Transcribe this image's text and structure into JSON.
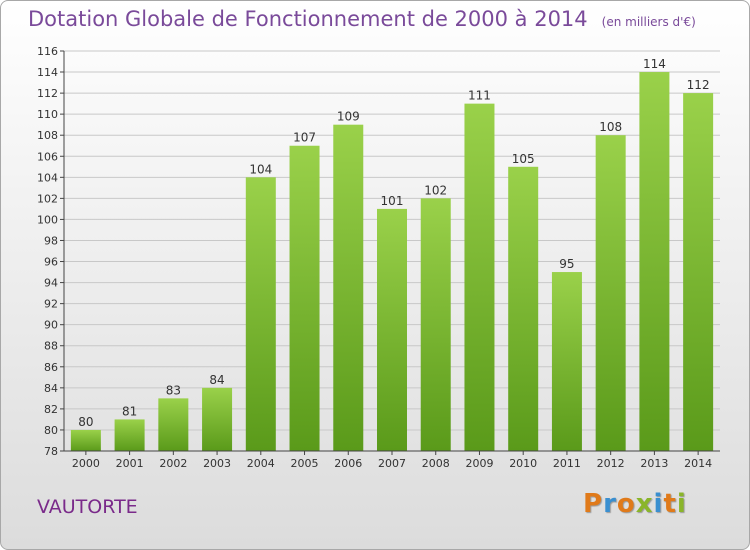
{
  "title": "Dotation Globale de Fonctionnement de 2000 à 2014",
  "subtitle": "(en milliers d'€)",
  "commune": "VAUTORTE",
  "logo": {
    "letters": [
      "P",
      "r",
      "o",
      "x",
      "i",
      "t",
      "i"
    ],
    "colors": [
      "#e07a1a",
      "#3a8fd0",
      "#e07a1a",
      "#8ab52a",
      "#3a8fd0",
      "#e07a1a",
      "#8ab52a"
    ]
  },
  "colors": {
    "bar_top": "#9ad14a",
    "bar_bottom": "#5a9a1a",
    "grid": "#c8c8c8"
  },
  "chart_data": {
    "type": "bar",
    "title": "Dotation Globale de Fonctionnement de 2000 à 2014",
    "subtitle": "(en milliers d'€)",
    "categories": [
      "2000",
      "2001",
      "2002",
      "2003",
      "2004",
      "2005",
      "2006",
      "2007",
      "2008",
      "2009",
      "2010",
      "2011",
      "2012",
      "2013",
      "2014"
    ],
    "values": [
      80,
      81,
      83,
      84,
      104,
      107,
      109,
      101,
      102,
      111,
      105,
      95,
      108,
      114,
      112
    ],
    "ylim": [
      78,
      116
    ],
    "yticks": [
      78,
      80,
      82,
      84,
      86,
      88,
      90,
      92,
      94,
      96,
      98,
      100,
      102,
      104,
      106,
      108,
      110,
      112,
      114,
      116
    ],
    "grid": true
  }
}
